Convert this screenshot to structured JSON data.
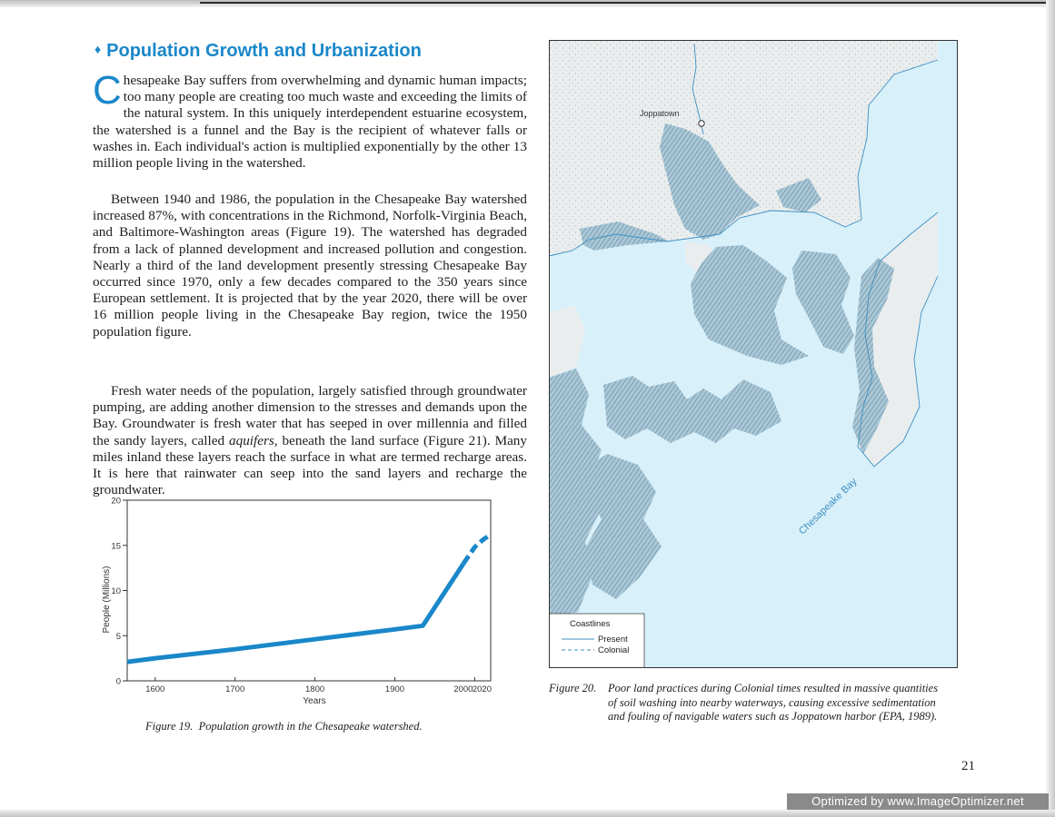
{
  "section": {
    "bullet": "♦",
    "title": "Population Growth and Urbanization"
  },
  "paragraphs": {
    "p1_dropcap": "C",
    "p1_text": "hesapeake Bay suffers from overwhelming and dynamic human impacts; too many people are creating too much waste and exceeding the limits of the natural system. In this uniquely interdependent estuarine ecosystem, the watershed is a funnel and the Bay is the recipient of whatever falls or washes in. Each individual's action is multiplied exponentially by the other 13 million people living in the watershed.",
    "p2": "Between 1940 and 1986, the population in the Chesapeake Bay watershed increased 87%, with concentrations in the Richmond, Norfolk-Virginia Beach, and Baltimore-Washington areas (Figure 19). The watershed has degraded from a lack of planned development and increased pollution and congestion. Nearly a third of the land development presently stressing Chesapeake Bay occurred since 1970, only a few decades compared to the 350 years since European settlement. It is projected that by the year 2020, there will be over 16 million people living in the Chesapeake Bay region, twice the 1950 population figure.",
    "p3_before": "Fresh water needs of the population, largely satisfied through groundwater pumping, are adding another dimension to the stresses and demands upon the Bay. Groundwater is fresh water that has seeped in over millennia and filled the sandy layers, called ",
    "p3_term": "aquifers,",
    "p3_after": " beneath the land surface (Figure 21). Many miles inland these layers reach the surface in what are termed recharge areas. It is here that rainwater can seep into the sand layers and recharge the groundwater."
  },
  "chart_data": {
    "type": "line",
    "xlabel": "Years",
    "ylabel": "People (Millions)",
    "xlim": [
      1565,
      2020
    ],
    "ylim": [
      0,
      20
    ],
    "x_ticks": [
      1600,
      1700,
      1800,
      1900,
      2000,
      2020
    ],
    "y_ticks": [
      0,
      5,
      10,
      15,
      20
    ],
    "line_color": "#1a87c9",
    "series": [
      {
        "style": "solid",
        "x": [
          1565,
          1600,
          1700,
          1800,
          1900,
          1935,
          1986
        ],
        "y": [
          2.1,
          2.5,
          3.5,
          4.6,
          5.7,
          6.1,
          13.0
        ]
      },
      {
        "style": "dashed",
        "x": [
          1986,
          2000,
          2010,
          2020
        ],
        "y": [
          13.0,
          14.8,
          15.6,
          16.2
        ]
      }
    ]
  },
  "figure19": {
    "label": "Figure 19.",
    "caption": "Population growth in the Chesapeake watershed."
  },
  "map": {
    "town_label": "Joppatown",
    "bay_label": "Chesapeake Bay",
    "legend_title": "Coastlines",
    "legend_present": "Present",
    "legend_colonial": "Colonial",
    "water_color": "#d8f0fa",
    "land_color": "#eaeeef",
    "colonial_land_color": "#a9c7d6"
  },
  "figure20": {
    "label": "Figure 20.",
    "caption": "Poor land practices during Colonial times resulted in massive quantities of soil washing into nearby waterways, causing excessive sedimentation and fouling of navigable waters such as Joppatown harbor (EPA, 1989)."
  },
  "page_number": "21",
  "watermark": "Optimized by www.ImageOptimizer.net"
}
